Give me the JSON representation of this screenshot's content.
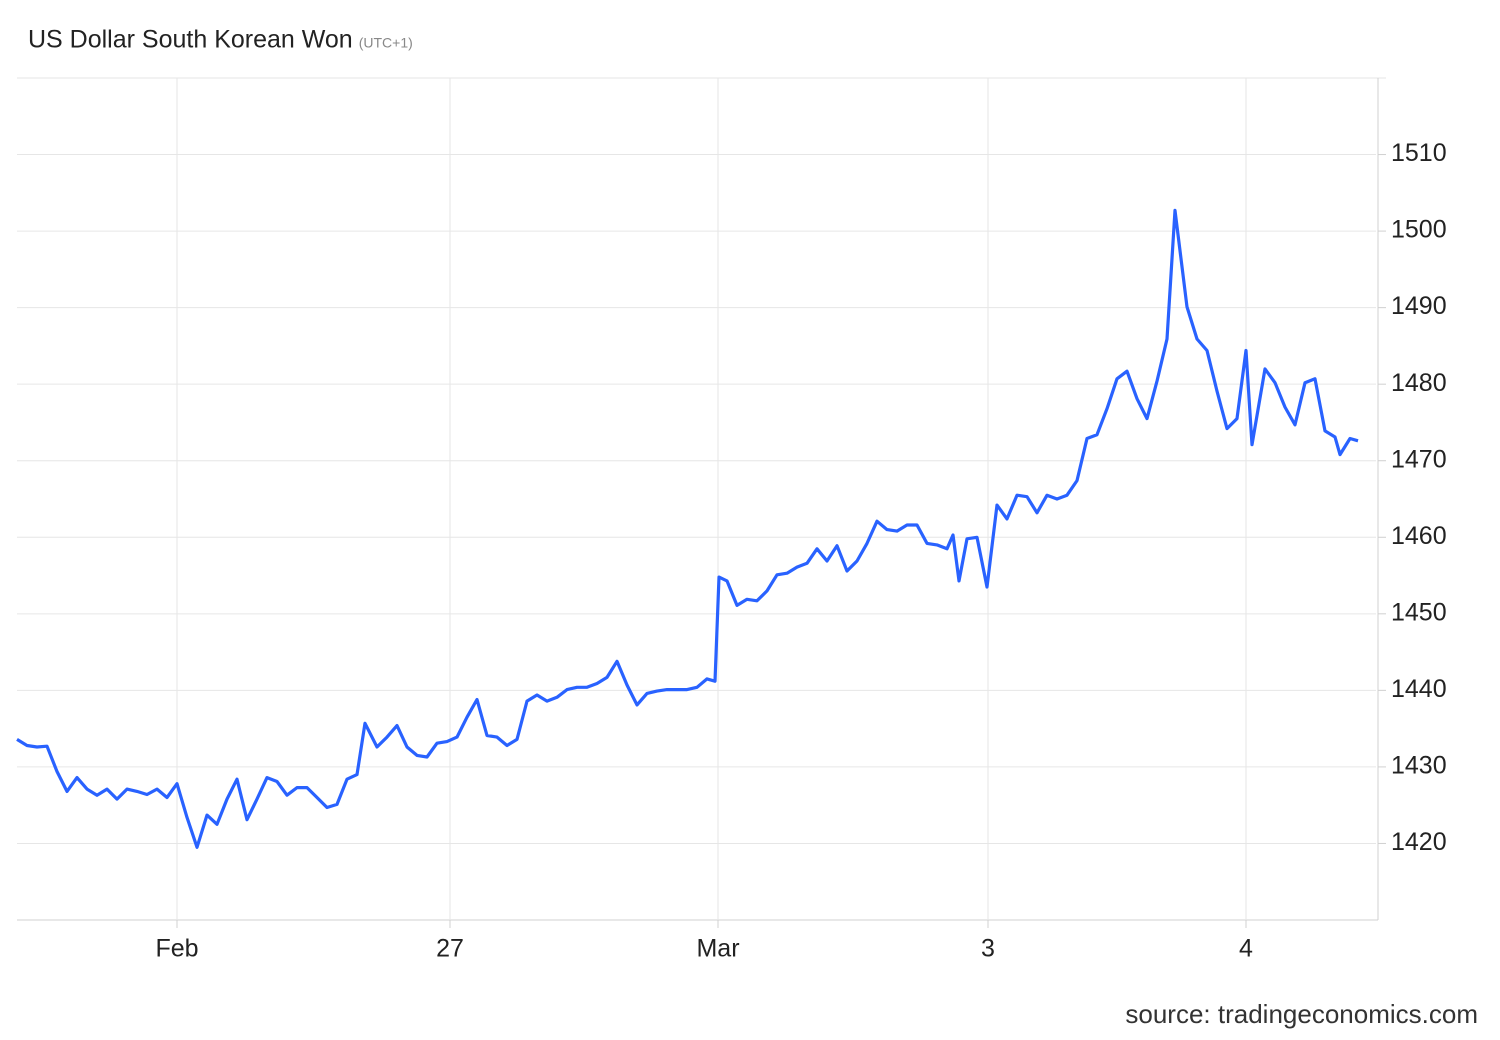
{
  "chart_data": {
    "type": "line",
    "title": "US Dollar South Korean Won",
    "subtitle": "(UTC+1)",
    "source": "source: tradingeconomics.com",
    "grid": true,
    "xlim": [
      0,
      135.9
    ],
    "xticks": [
      {
        "value": 16,
        "label": "Feb"
      },
      {
        "value": 43.3,
        "label": "27"
      },
      {
        "value": 70.1,
        "label": "Mar"
      },
      {
        "value": 97.1,
        "label": "3"
      },
      {
        "value": 122.9,
        "label": "4"
      }
    ],
    "ylim": [
      1410,
      1520
    ],
    "yticks": [
      1420,
      1430,
      1440,
      1450,
      1460,
      1470,
      1480,
      1490,
      1500,
      1510
    ],
    "x": [
      0,
      1,
      2,
      3,
      4,
      5,
      6,
      7,
      8,
      9,
      10,
      11,
      12,
      13,
      14,
      15,
      16,
      17,
      18,
      19,
      20,
      21,
      22,
      23,
      24,
      25,
      26,
      27,
      28,
      29,
      30,
      31,
      32,
      33,
      34,
      34.8,
      36,
      37,
      38,
      39,
      40,
      41,
      42,
      43,
      44,
      45,
      46,
      47,
      48,
      49,
      50,
      51,
      52,
      53,
      54,
      55,
      56,
      57,
      58,
      59,
      60,
      61,
      62,
      63,
      64,
      65,
      66,
      67,
      68,
      69,
      69.8,
      70.2,
      71,
      72,
      73,
      74,
      75,
      76,
      77,
      78,
      79,
      80,
      81,
      82,
      83,
      84,
      85,
      86,
      87,
      88,
      89,
      90,
      91,
      92,
      93,
      93.6,
      94.2,
      95,
      96,
      97,
      98,
      99,
      100,
      101,
      102,
      103,
      104,
      105,
      106,
      107,
      108,
      109,
      110,
      111,
      112,
      113,
      114,
      115,
      115.8,
      117,
      118,
      119,
      120,
      121,
      122,
      122.9,
      123.5,
      124.8,
      125.8,
      126.8,
      127.8,
      128.8,
      129.8,
      130.8,
      131.8,
      132.3,
      133.3,
      134.1
    ],
    "series": [
      {
        "name": "USDKRW",
        "color": "#2962ff",
        "values": [
          1433.6,
          1432.8,
          1432.6,
          1432.7,
          1429.4,
          1426.8,
          1428.6,
          1427.1,
          1426.3,
          1427.1,
          1425.8,
          1427.1,
          1426.8,
          1426.4,
          1427.1,
          1426.0,
          1427.8,
          1423.4,
          1419.5,
          1423.7,
          1422.5,
          1425.8,
          1428.4,
          1423.1,
          1425.8,
          1428.6,
          1428.1,
          1426.3,
          1427.3,
          1427.3,
          1426.0,
          1424.7,
          1425.1,
          1428.4,
          1429.0,
          1435.7,
          1432.6,
          1433.9,
          1435.4,
          1432.6,
          1431.5,
          1431.3,
          1433.1,
          1433.3,
          1433.9,
          1436.5,
          1438.8,
          1434.1,
          1433.9,
          1432.8,
          1433.6,
          1438.6,
          1439.4,
          1438.6,
          1439.1,
          1440.1,
          1440.4,
          1440.4,
          1440.9,
          1441.7,
          1443.8,
          1440.7,
          1438.1,
          1439.6,
          1439.9,
          1440.1,
          1440.1,
          1440.1,
          1440.4,
          1441.5,
          1441.2,
          1454.8,
          1454.3,
          1451.1,
          1451.9,
          1451.7,
          1453.0,
          1455.1,
          1455.3,
          1456.1,
          1456.6,
          1458.5,
          1456.9,
          1458.9,
          1455.6,
          1456.9,
          1459.2,
          1462.1,
          1461.0,
          1460.8,
          1461.6,
          1461.6,
          1459.2,
          1459.0,
          1458.5,
          1460.3,
          1454.3,
          1459.8,
          1460.0,
          1453.5,
          1464.2,
          1462.4,
          1465.5,
          1465.3,
          1463.2,
          1465.5,
          1465.0,
          1465.5,
          1467.4,
          1472.9,
          1473.4,
          1476.8,
          1480.7,
          1481.7,
          1478.1,
          1475.5,
          1480.4,
          1485.9,
          1502.7,
          1490.1,
          1485.9,
          1484.4,
          1479.1,
          1474.2,
          1475.5,
          1484.4,
          1472.1,
          1482.0,
          1480.2,
          1477.0,
          1474.7,
          1480.2,
          1480.7,
          1473.9,
          1473.1,
          1470.8,
          1472.9,
          1472.6
        ]
      }
    ]
  }
}
